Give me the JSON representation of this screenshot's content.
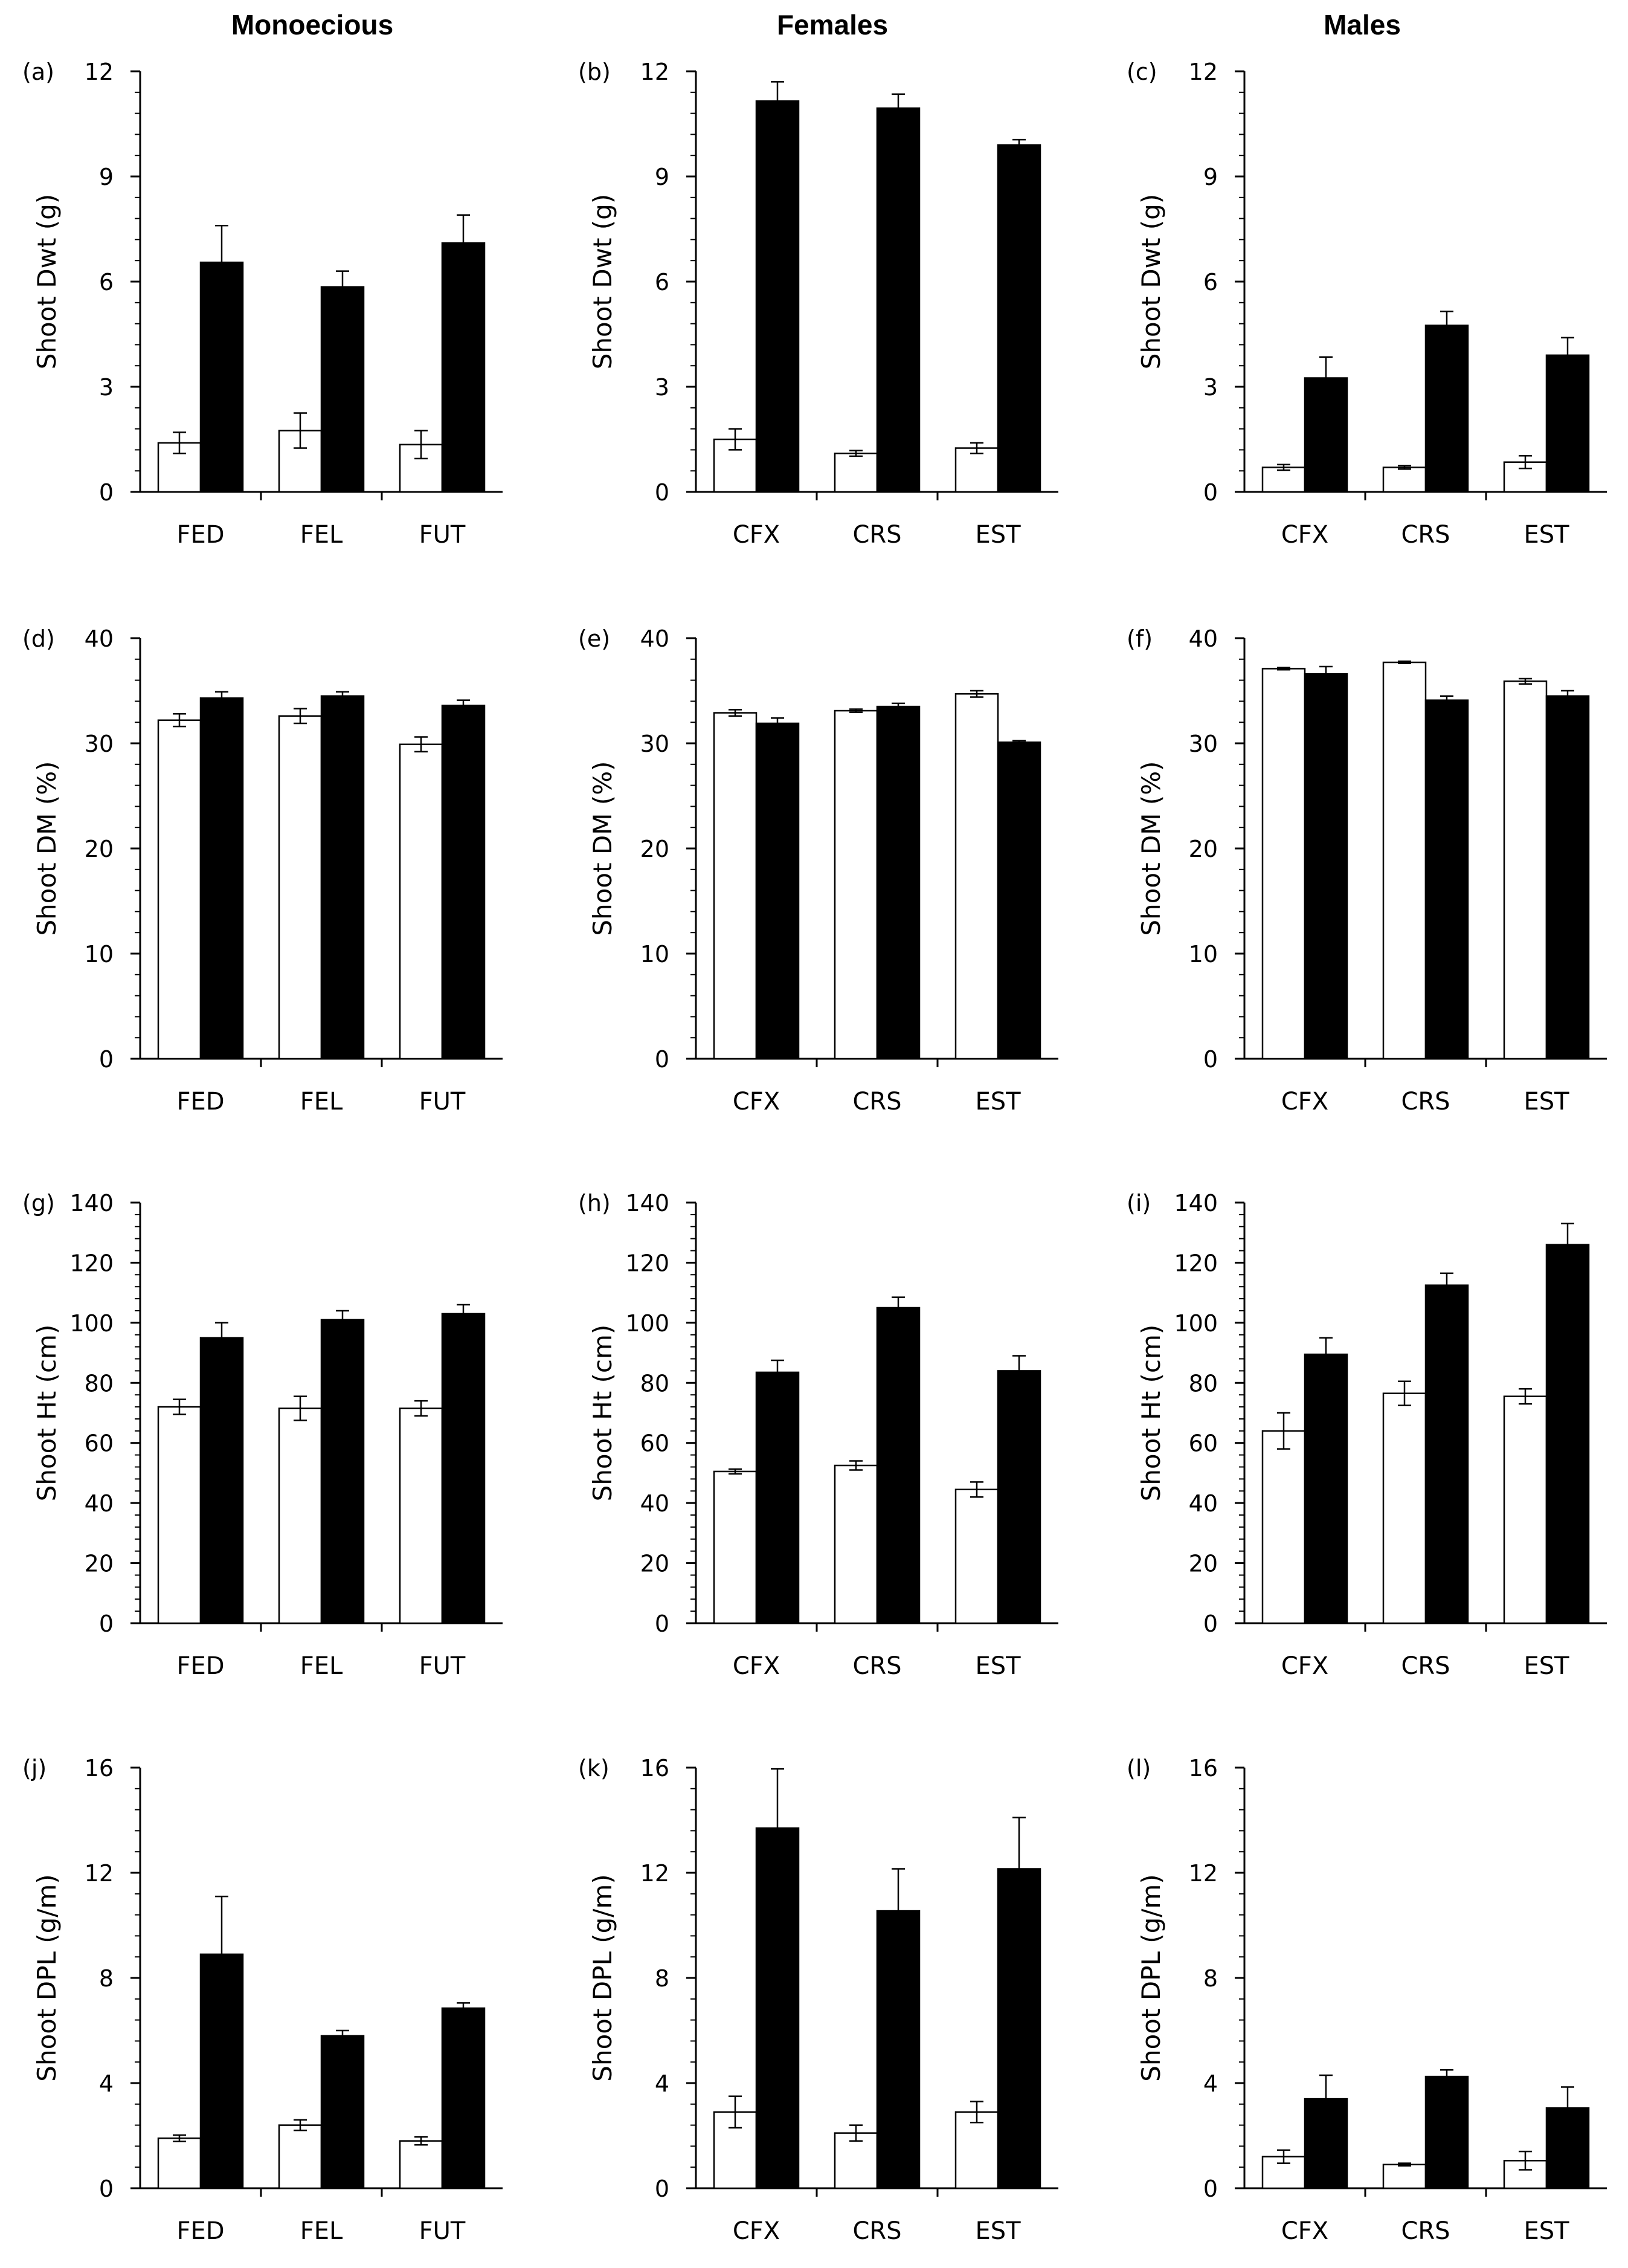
{
  "columns": [
    "Monoecious",
    "Females",
    "Males"
  ],
  "chart_data": [
    {
      "id": "a",
      "label": "(a)",
      "type": "bar",
      "ylabel": "Shoot Dwt (g)",
      "ylim": [
        0,
        12
      ],
      "yticks": [
        0,
        3,
        6,
        9,
        12
      ],
      "categories": [
        "FED",
        "FEL",
        "FUT"
      ],
      "series": [
        {
          "name": "open bars",
          "values": [
            1.4,
            1.75,
            1.35
          ],
          "errors": [
            0.3,
            0.5,
            0.4
          ]
        },
        {
          "name": "filled bars",
          "values": [
            6.55,
            5.85,
            7.1
          ],
          "errors": [
            1.05,
            0.45,
            0.8
          ]
        }
      ]
    },
    {
      "id": "b",
      "label": "(b)",
      "type": "bar",
      "ylabel": "Shoot Dwt (g)",
      "ylim": [
        0,
        12
      ],
      "yticks": [
        0,
        3,
        6,
        9,
        12
      ],
      "categories": [
        "CFX",
        "CRS",
        "EST"
      ],
      "series": [
        {
          "name": "open bars",
          "values": [
            1.5,
            1.1,
            1.25
          ],
          "errors": [
            0.3,
            0.08,
            0.15
          ]
        },
        {
          "name": "filled bars",
          "values": [
            11.15,
            10.95,
            9.9
          ],
          "errors": [
            0.55,
            0.4,
            0.15
          ]
        }
      ]
    },
    {
      "id": "c",
      "label": "(c)",
      "type": "bar",
      "ylabel": "Shoot Dwt (g)",
      "ylim": [
        0,
        12
      ],
      "yticks": [
        0,
        3,
        6,
        9,
        12
      ],
      "categories": [
        "CFX",
        "CRS",
        "EST"
      ],
      "series": [
        {
          "name": "open bars",
          "values": [
            0.7,
            0.7,
            0.85
          ],
          "errors": [
            0.08,
            0.05,
            0.18
          ]
        },
        {
          "name": "filled bars",
          "values": [
            3.25,
            4.75,
            3.9
          ],
          "errors": [
            0.6,
            0.4,
            0.5
          ]
        }
      ]
    },
    {
      "id": "d",
      "label": "(d)",
      "type": "bar",
      "ylabel": "Shoot DM (%)",
      "ylim": [
        0,
        40
      ],
      "yticks": [
        0,
        10,
        20,
        30,
        40
      ],
      "categories": [
        "FED",
        "FEL",
        "FUT"
      ],
      "series": [
        {
          "name": "open bars",
          "values": [
            32.2,
            32.6,
            29.9
          ],
          "errors": [
            0.6,
            0.7,
            0.7
          ]
        },
        {
          "name": "filled bars",
          "values": [
            34.3,
            34.5,
            33.6
          ],
          "errors": [
            0.6,
            0.4,
            0.5
          ]
        }
      ]
    },
    {
      "id": "e",
      "label": "(e)",
      "type": "bar",
      "ylabel": "Shoot DM (%)",
      "ylim": [
        0,
        40
      ],
      "yticks": [
        0,
        10,
        20,
        30,
        40
      ],
      "categories": [
        "CFX",
        "CRS",
        "EST"
      ],
      "series": [
        {
          "name": "open bars",
          "values": [
            32.9,
            33.1,
            34.7
          ],
          "errors": [
            0.3,
            0.15,
            0.3
          ]
        },
        {
          "name": "filled bars",
          "values": [
            31.9,
            33.5,
            30.1
          ],
          "errors": [
            0.5,
            0.3,
            0.15
          ]
        }
      ]
    },
    {
      "id": "f",
      "label": "(f)",
      "type": "bar",
      "ylabel": "Shoot DM (%)",
      "ylim": [
        0,
        40
      ],
      "yticks": [
        0,
        10,
        20,
        30,
        40
      ],
      "categories": [
        "CFX",
        "CRS",
        "EST"
      ],
      "series": [
        {
          "name": "open bars",
          "values": [
            37.1,
            37.7,
            35.9
          ],
          "errors": [
            0.1,
            0.1,
            0.25
          ]
        },
        {
          "name": "filled bars",
          "values": [
            36.6,
            34.1,
            34.5
          ],
          "errors": [
            0.7,
            0.4,
            0.5
          ]
        }
      ]
    },
    {
      "id": "g",
      "label": "(g)",
      "type": "bar",
      "ylabel": "Shoot Ht (cm)",
      "ylim": [
        0,
        140
      ],
      "yticks": [
        0,
        20,
        40,
        60,
        80,
        100,
        120,
        140
      ],
      "categories": [
        "FED",
        "FEL",
        "FUT"
      ],
      "series": [
        {
          "name": "open bars",
          "values": [
            72,
            71.5,
            71.5
          ],
          "errors": [
            2.5,
            4,
            2.5
          ]
        },
        {
          "name": "filled bars",
          "values": [
            95,
            101,
            103
          ],
          "errors": [
            5,
            3,
            3
          ]
        }
      ]
    },
    {
      "id": "h",
      "label": "(h)",
      "type": "bar",
      "ylabel": "Shoot Ht (cm)",
      "ylim": [
        0,
        140
      ],
      "yticks": [
        0,
        20,
        40,
        60,
        80,
        100,
        120,
        140
      ],
      "categories": [
        "CFX",
        "CRS",
        "EST"
      ],
      "series": [
        {
          "name": "open bars",
          "values": [
            50.5,
            52.5,
            44.5
          ],
          "errors": [
            0.8,
            1.5,
            2.5
          ]
        },
        {
          "name": "filled bars",
          "values": [
            83.5,
            105,
            84
          ],
          "errors": [
            4,
            3.5,
            5
          ]
        }
      ]
    },
    {
      "id": "i",
      "label": "(i)",
      "type": "bar",
      "ylabel": "Shoot Ht (cm)",
      "ylim": [
        0,
        140
      ],
      "yticks": [
        0,
        20,
        40,
        60,
        80,
        100,
        120,
        140
      ],
      "categories": [
        "CFX",
        "CRS",
        "EST"
      ],
      "series": [
        {
          "name": "open bars",
          "values": [
            64,
            76.5,
            75.5
          ],
          "errors": [
            6,
            4,
            2.5
          ]
        },
        {
          "name": "filled bars",
          "values": [
            89.5,
            112.5,
            126
          ],
          "errors": [
            5.5,
            4,
            7
          ]
        }
      ]
    },
    {
      "id": "j",
      "label": "(j)",
      "type": "bar",
      "ylabel": "Shoot DPL (g/m)",
      "ylim": [
        0,
        16
      ],
      "yticks": [
        0,
        4,
        8,
        12,
        16
      ],
      "categories": [
        "FED",
        "FEL",
        "FUT"
      ],
      "series": [
        {
          "name": "open bars",
          "values": [
            1.9,
            2.4,
            1.8
          ],
          "errors": [
            0.12,
            0.2,
            0.15
          ]
        },
        {
          "name": "filled bars",
          "values": [
            8.9,
            5.8,
            6.85
          ],
          "errors": [
            2.2,
            0.2,
            0.2
          ]
        }
      ]
    },
    {
      "id": "k",
      "label": "(k)",
      "type": "bar",
      "ylabel": "Shoot DPL (g/m)",
      "ylim": [
        0,
        16
      ],
      "yticks": [
        0,
        4,
        8,
        12,
        16
      ],
      "categories": [
        "CFX",
        "CRS",
        "EST"
      ],
      "series": [
        {
          "name": "open bars",
          "values": [
            2.9,
            2.1,
            2.9
          ],
          "errors": [
            0.6,
            0.3,
            0.4
          ]
        },
        {
          "name": "filled bars",
          "values": [
            13.7,
            10.55,
            12.15
          ],
          "errors": [
            2.25,
            1.6,
            1.95
          ]
        }
      ]
    },
    {
      "id": "l",
      "label": "(l)",
      "type": "bar",
      "ylabel": "Shoot DPL (g/m)",
      "ylim": [
        0,
        16
      ],
      "yticks": [
        0,
        4,
        8,
        12,
        16
      ],
      "categories": [
        "CFX",
        "CRS",
        "EST"
      ],
      "series": [
        {
          "name": "open bars",
          "values": [
            1.2,
            0.9,
            1.05
          ],
          "errors": [
            0.25,
            0.05,
            0.35
          ]
        },
        {
          "name": "filled bars",
          "values": [
            3.4,
            4.25,
            3.05
          ],
          "errors": [
            0.9,
            0.25,
            0.8
          ]
        }
      ]
    }
  ]
}
